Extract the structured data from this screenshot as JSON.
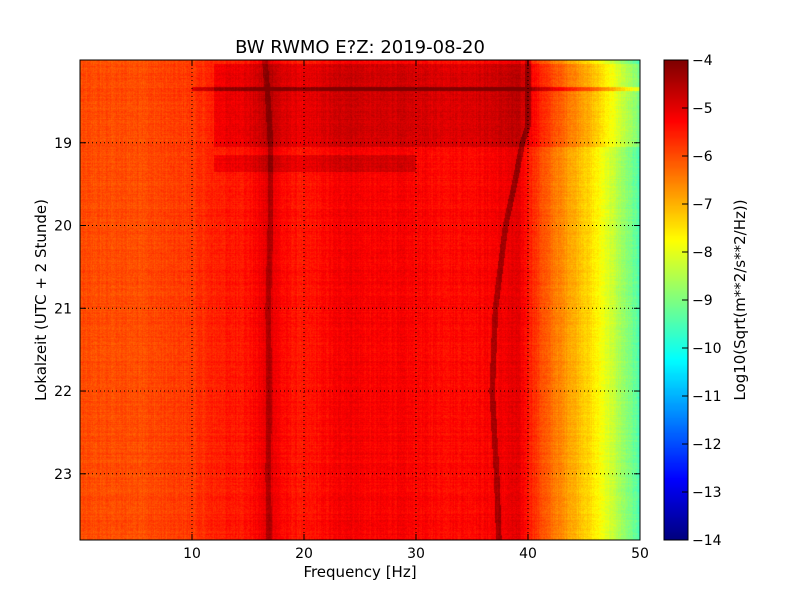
{
  "chart_data": {
    "type": "heatmap",
    "title": "BW RWMO E?Z: 2019-08-20",
    "xlabel": "Frequency [Hz]",
    "ylabel": "Lokalzeit (UTC + 2 Stunde)",
    "xlim": [
      0,
      50
    ],
    "ylim": [
      18,
      23.8
    ],
    "y_inverted": true,
    "x_ticks": [
      10,
      20,
      30,
      40,
      50
    ],
    "x_tick_labels": [
      "10",
      "20",
      "30",
      "40",
      "50"
    ],
    "y_ticks": [
      19,
      20,
      21,
      22,
      23
    ],
    "y_tick_labels": [
      "19",
      "20",
      "21",
      "22",
      "23"
    ],
    "grid": true,
    "colormap": "jet",
    "colorbar": {
      "label": "Log10(Sqrt(m**2/s**2/Hz))",
      "range": [
        -14,
        -4
      ],
      "ticks": [
        -4,
        -5,
        -6,
        -7,
        -8,
        -9,
        -10,
        -11,
        -12,
        -13,
        -14
      ],
      "tick_labels": [
        "−4",
        "−5",
        "−6",
        "−7",
        "−8",
        "−9",
        "−10",
        "−11",
        "−12",
        "−13",
        "−14"
      ]
    },
    "spectral_profile": {
      "frequency_hz": [
        0,
        5,
        10,
        12,
        15,
        16,
        17,
        18,
        20,
        22,
        24,
        26,
        28,
        30,
        32,
        34,
        36,
        38,
        39,
        40,
        41,
        42,
        43,
        44,
        45,
        46,
        47,
        48,
        49,
        50
      ],
      "log_psd": [
        -6.0,
        -6.0,
        -5.8,
        -5.55,
        -5.4,
        -5.2,
        -4.9,
        -5.3,
        -5.5,
        -5.3,
        -5.1,
        -5.25,
        -5.2,
        -5.25,
        -5.3,
        -5.3,
        -5.25,
        -5.1,
        -5.0,
        -5.4,
        -5.9,
        -6.3,
        -6.6,
        -6.9,
        -7.2,
        -7.6,
        -8.0,
        -8.5,
        -9.0,
        -9.5
      ]
    },
    "features": [
      {
        "type": "time_band",
        "start_hour": 18.05,
        "end_hour": 19.05,
        "freq_from_hz": 12,
        "freq_to_hz": 50,
        "delta": 0.4
      },
      {
        "type": "time_line",
        "hour": 18.35,
        "freq_from_hz": 10,
        "freq_to_hz": 50,
        "delta": 0.9
      },
      {
        "type": "time_band",
        "start_hour": 19.15,
        "end_hour": 19.35,
        "freq_from_hz": 12,
        "freq_to_hz": 30,
        "delta": 0.4
      },
      {
        "type": "tonal_line",
        "hours": [
          18.8,
          19.0,
          19.5,
          20.0,
          21.0,
          22.0,
          23.0,
          23.8
        ],
        "freqs_hz": [
          40,
          39.5,
          38.8,
          38.0,
          37.1,
          36.8,
          37.2,
          37.4
        ],
        "delta": 0.8
      },
      {
        "type": "tonal_line",
        "hours": [
          18.0,
          18.5,
          19.0,
          20.0,
          21.0,
          22.0,
          23.0,
          23.8
        ],
        "freqs_hz": [
          16.5,
          16.8,
          17.0,
          17.0,
          16.8,
          16.9,
          16.8,
          16.9
        ],
        "delta": 0.5
      }
    ]
  }
}
